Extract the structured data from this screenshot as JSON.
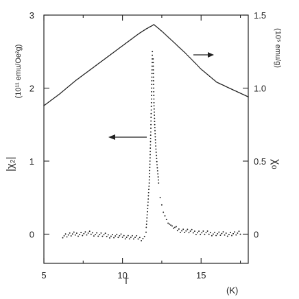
{
  "chart_data": {
    "type": "scatter",
    "xlabel": "T",
    "xunit": "(K)",
    "ylabel_left": "|χ₂|",
    "yunit_left": "(10¹¹ emu/Oe²g)",
    "ylabel_right": "χ₀",
    "yunit_right": "(10⁵ emu/g)",
    "xlim": [
      5,
      18
    ],
    "ylim_left": [
      -0.4,
      3
    ],
    "ylim_right": [
      -0.2,
      1.5
    ],
    "x_ticks": [
      "5",
      "10",
      "15"
    ],
    "x_tick_values": [
      5,
      10,
      15
    ],
    "y_ticks_left": [
      "0",
      "1",
      "2",
      "3"
    ],
    "y_tick_values_left": [
      0,
      1,
      2,
      3
    ],
    "y_ticks_right": [
      "0",
      "0.5",
      "1.0",
      "1.5"
    ],
    "y_tick_values_right": [
      0,
      0.5,
      1.0,
      1.5
    ],
    "grid": false,
    "series": [
      {
        "axis": "right",
        "points": [
          [
            5,
            0.88
          ],
          [
            6,
            0.96
          ],
          [
            7,
            1.05
          ],
          [
            8,
            1.13
          ],
          [
            9,
            1.21
          ],
          [
            10,
            1.29
          ],
          [
            11,
            1.37
          ],
          [
            11.5,
            1.405
          ],
          [
            12,
            1.435
          ],
          [
            12.5,
            1.39
          ],
          [
            13,
            1.34
          ],
          [
            14,
            1.24
          ],
          [
            15,
            1.13
          ],
          [
            16,
            1.04
          ],
          [
            17,
            0.99
          ],
          [
            18,
            0.94
          ]
        ]
      },
      {
        "axis": "left",
        "points": [
          [
            6.2,
            -0.02
          ],
          [
            7,
            0.0
          ],
          [
            8,
            0.01
          ],
          [
            9,
            -0.02
          ],
          [
            10,
            -0.03
          ],
          [
            10.8,
            -0.05
          ],
          [
            11.2,
            -0.06
          ],
          [
            11.4,
            -0.05
          ],
          [
            11.5,
            0.05
          ],
          [
            11.6,
            0.35
          ],
          [
            11.7,
            0.7
          ],
          [
            11.75,
            1.0
          ],
          [
            11.8,
            1.4
          ],
          [
            11.85,
            1.9
          ],
          [
            11.9,
            2.5
          ],
          [
            11.95,
            2.4
          ],
          [
            12.0,
            1.8
          ],
          [
            12.05,
            1.5
          ],
          [
            12.1,
            1.25
          ],
          [
            12.2,
            0.95
          ],
          [
            12.3,
            0.7
          ],
          [
            12.4,
            0.5
          ],
          [
            12.6,
            0.3
          ],
          [
            12.9,
            0.15
          ],
          [
            13.5,
            0.06
          ],
          [
            14.5,
            0.03
          ],
          [
            15.5,
            0.01
          ],
          [
            16.5,
            0.0
          ],
          [
            17.5,
            0.01
          ]
        ]
      }
    ]
  }
}
